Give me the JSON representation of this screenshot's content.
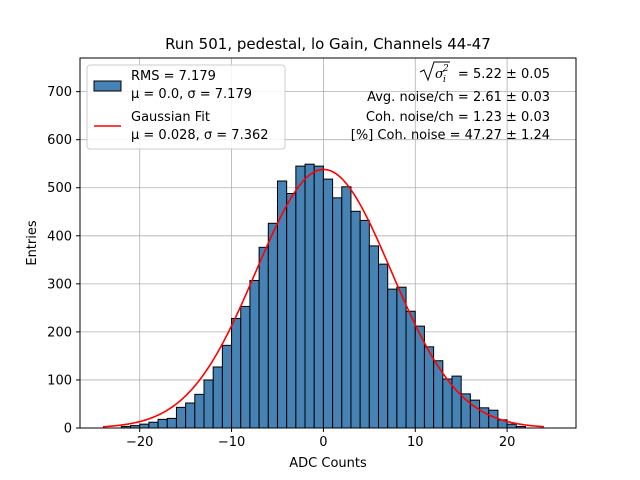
{
  "chart_data": {
    "type": "bar",
    "title": "Run 501, pedestal, lo Gain, Channels 44-47",
    "xlabel": "ADC Counts",
    "ylabel": "Entries",
    "xlim": [
      -26.5,
      27.5
    ],
    "ylim": [
      0,
      770
    ],
    "xticks": [
      -20,
      -10,
      0,
      10,
      20
    ],
    "xtick_labels": [
      "−20",
      "−10",
      "0",
      "10",
      "20"
    ],
    "yticks": [
      0,
      100,
      200,
      300,
      400,
      500,
      600,
      700
    ],
    "ytick_labels": [
      "0",
      "100",
      "200",
      "300",
      "400",
      "500",
      "600",
      "700"
    ],
    "grid": true,
    "bar_color": "#4682b4",
    "bin_width": 1,
    "bin_left_edges": [
      -22,
      -21,
      -20,
      -19,
      -18,
      -17,
      -16,
      -15,
      -14,
      -13,
      -12,
      -11,
      -10,
      -9,
      -8,
      -7,
      -6,
      -5,
      -4,
      -3,
      -2,
      -1,
      0,
      1,
      2,
      3,
      4,
      5,
      6,
      7,
      8,
      9,
      10,
      11,
      12,
      13,
      14,
      15,
      16,
      17,
      18,
      19,
      20,
      21
    ],
    "values": [
      3,
      5,
      8,
      12,
      18,
      20,
      43,
      52,
      70,
      100,
      127,
      172,
      228,
      253,
      307,
      376,
      426,
      514,
      488,
      545,
      549,
      545,
      518,
      479,
      502,
      451,
      432,
      379,
      341,
      289,
      293,
      243,
      212,
      169,
      140,
      102,
      108,
      71,
      58,
      42,
      37,
      17,
      8,
      3
    ],
    "fit": {
      "name": "Gaussian Fit",
      "color": "#ff0000",
      "mu": 0.028,
      "sigma": 7.362,
      "amplitude": 538,
      "x_range": [
        -24,
        24
      ]
    },
    "legend": {
      "placement": "top-left",
      "entries": [
        {
          "line1": "RMS = 7.179",
          "line2": "μ = 0.0, σ = 7.179",
          "kind": "patch",
          "color": "#4682b4"
        },
        {
          "line1": "Gaussian Fit",
          "line2": "μ = 0.028, σ = 7.362",
          "kind": "line",
          "color": "#ff0000"
        }
      ]
    },
    "annotations": {
      "placement": "top-right",
      "sigma_line_value": " = 5.22 ± 0.05",
      "lines": [
        "Avg. noise/ch = 2.61 ± 0.03",
        "Coh. noise/ch = 1.23 ± 0.03",
        "[%] Coh. noise = 47.27 ± 1.24"
      ]
    }
  }
}
